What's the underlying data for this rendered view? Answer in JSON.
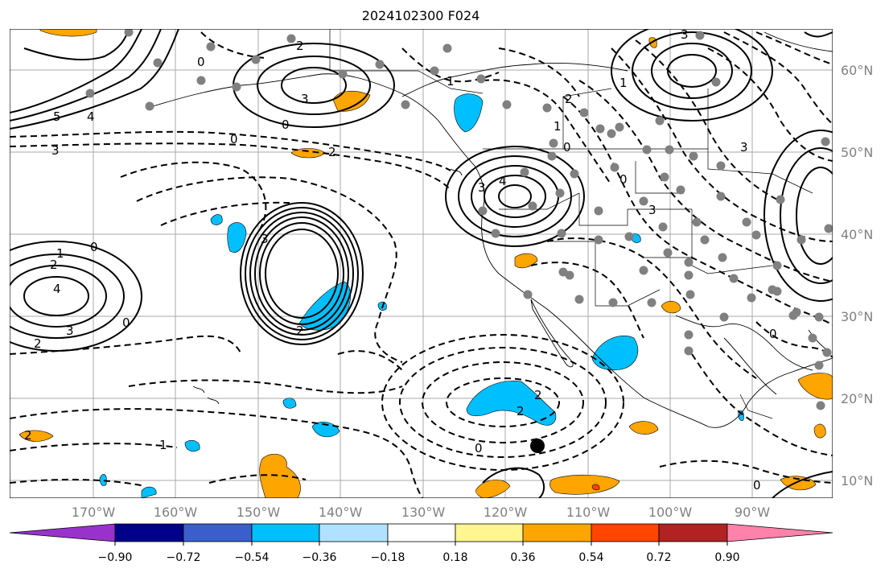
{
  "title": "2024102300 F024",
  "lat_labels": [
    "60°N",
    "50°N",
    "40°N",
    "30°N",
    "20°N",
    "10°N"
  ],
  "lon_labels": [
    "170°W",
    "160°W",
    "150°W",
    "140°W",
    "130°W",
    "120°W",
    "110°W",
    "100°W",
    "90°W"
  ],
  "colorbar": {
    "tick_labels": [
      "−0.90",
      "−0.72",
      "−0.54",
      "−0.36",
      "−0.18",
      "0.18",
      "0.36",
      "0.54",
      "0.72",
      "0.90"
    ],
    "colors": [
      "#9932cc",
      "#00008b",
      "#3a5fcd",
      "#00bfff",
      "#b0e2ff",
      "#ffffff",
      "#fff68f",
      "#ffa500",
      "#ff4500",
      "#b22222",
      "#ff82ab"
    ]
  },
  "contour_labels": [
    "2",
    "0",
    "3",
    "1",
    "1",
    "2",
    "3",
    "5",
    "4",
    "3",
    "0",
    "3",
    "2",
    "0",
    "1",
    "0",
    "4",
    "3",
    "0",
    "3",
    "0",
    "1",
    "4",
    "2",
    "3",
    "2",
    "3",
    "2",
    "0",
    "1",
    "2",
    "2",
    "2",
    "0",
    "0",
    "0"
  ],
  "map_colors": {
    "negative_fill": "#00bfff",
    "positive_fill": "#ffa500",
    "strong_positive_fill": "#ff4500",
    "station_dot": "#808080",
    "grid": "#a9a9a9"
  }
}
